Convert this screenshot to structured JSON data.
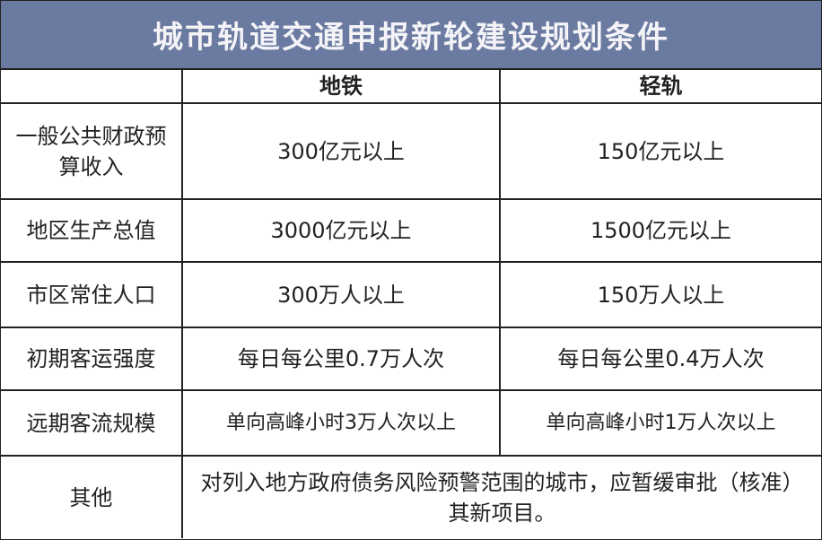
{
  "title": "城市轨道交通申报新轮建设规划条件",
  "columns": [
    "",
    "地铁",
    "轻轨"
  ],
  "rows": [
    {
      "label": "一般公共财政预算收入",
      "metro": "300亿元以上",
      "light_rail": "150亿元以上"
    },
    {
      "label": "地区生产总值",
      "metro": "3000亿元以上",
      "light_rail": "1500亿元以上"
    },
    {
      "label": "市区常住人口",
      "metro": "300万人以上",
      "light_rail": "150万人以上"
    },
    {
      "label": "初期客运强度",
      "metro": "每日每公里0.7万人次",
      "light_rail": "每日每公里0.4万人次"
    },
    {
      "label": "远期客流规模",
      "metro": "单向高峰小时3万人次以上",
      "light_rail": "单向高峰小时1万人次以上"
    }
  ],
  "other": {
    "label": "其他",
    "text": "对列入地方政府债务风险预警范围的城市，应暂缓审批（核准）其新项目。"
  }
}
